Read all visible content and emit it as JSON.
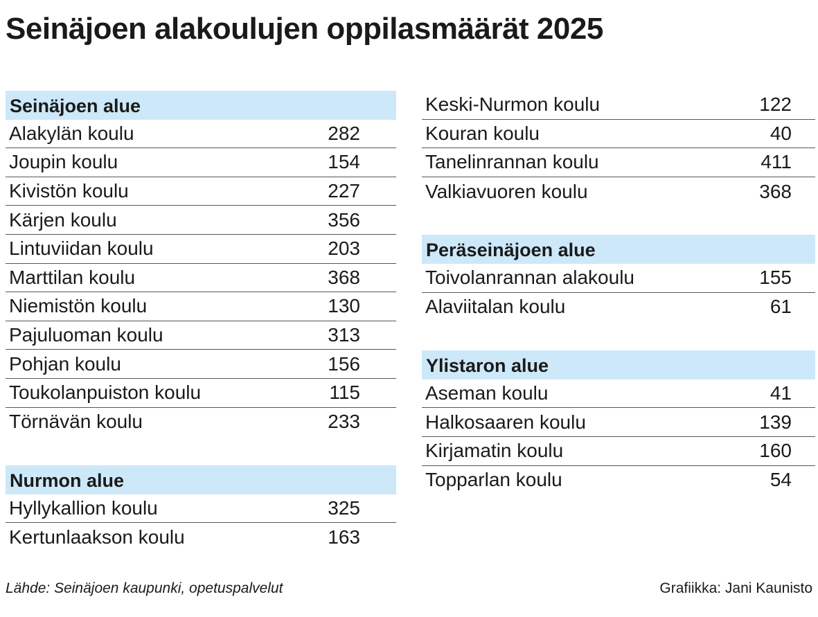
{
  "title": "Seinäjoen alakoulujen oppilasmäärät 2025",
  "footer": {
    "source": "Lähde: Seinäjoen kaupunki, opetuspalvelut",
    "credit": "Grafiikka: Jani Kaunisto"
  },
  "chart_data": {
    "type": "table",
    "title": "Seinäjoen alakoulujen oppilasmäärät 2025",
    "sections": [
      {
        "name": "Seinäjoen alue",
        "schools": [
          {
            "name": "Alakylän koulu",
            "value": "282"
          },
          {
            "name": "Joupin koulu",
            "value": "154"
          },
          {
            "name": "Kivistön koulu",
            "value": "227"
          },
          {
            "name": "Kärjen koulu",
            "value": "356"
          },
          {
            "name": "Lintuviidan koulu",
            "value": "203"
          },
          {
            "name": "Marttilan koulu",
            "value": "368"
          },
          {
            "name": "Niemistön koulu",
            "value": "130"
          },
          {
            "name": "Pajuluoman koulu",
            "value": "313"
          },
          {
            "name": "Pohjan koulu",
            "value": "156"
          },
          {
            "name": "Toukolanpuiston koulu",
            "value": "115"
          },
          {
            "name": "Törnävän koulu",
            "value": "233"
          }
        ]
      },
      {
        "name": "Nurmon alue",
        "schools": [
          {
            "name": "Hyllykallion koulu",
            "value": "325"
          },
          {
            "name": "Kertunlaakson koulu",
            "value": "163"
          },
          {
            "name": "Keski-Nurmon koulu",
            "value": "122"
          },
          {
            "name": "Kouran koulu",
            "value": "40"
          },
          {
            "name": "Tanelinrannan koulu",
            "value": "411"
          },
          {
            "name": "Valkiavuoren koulu",
            "value": "368"
          }
        ]
      },
      {
        "name": "Peräseinäjoen alue",
        "schools": [
          {
            "name": "Toivolanrannan alakoulu",
            "value": "155"
          },
          {
            "name": "Alaviitalan koulu",
            "value": "61"
          }
        ]
      },
      {
        "name": "Ylistaron alue",
        "schools": [
          {
            "name": "Aseman koulu",
            "value": "41"
          },
          {
            "name": "Halkosaaren koulu",
            "value": "139"
          },
          {
            "name": "Kirjamatin koulu",
            "value": "160"
          },
          {
            "name": "Topparlan koulu",
            "value": "54"
          }
        ]
      }
    ]
  },
  "colors": {
    "header_bg": "#cde8f8",
    "text": "#1a1a1a",
    "rule": "#555555"
  }
}
